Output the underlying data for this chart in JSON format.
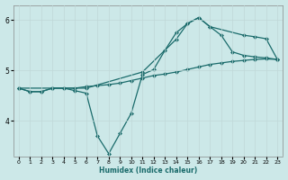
{
  "xlabel": "Humidex (Indice chaleur)",
  "background_color": "#cce8e8",
  "line_color": "#1a6b6b",
  "xlim": [
    -0.5,
    23.5
  ],
  "ylim": [
    3.3,
    6.3
  ],
  "yticks": [
    4,
    5,
    6
  ],
  "xticks": [
    0,
    1,
    2,
    3,
    4,
    5,
    6,
    7,
    8,
    9,
    10,
    11,
    12,
    13,
    14,
    15,
    16,
    17,
    18,
    19,
    20,
    21,
    22,
    23
  ],
  "line1_x": [
    0,
    1,
    2,
    3,
    4,
    5,
    6,
    7,
    8,
    9,
    10,
    11,
    12,
    13,
    14,
    15,
    16,
    17,
    18,
    19,
    20,
    21,
    22,
    23
  ],
  "line1_y": [
    4.65,
    4.58,
    4.58,
    4.65,
    4.65,
    4.65,
    4.68,
    4.7,
    4.72,
    4.75,
    4.8,
    4.85,
    4.9,
    4.93,
    4.97,
    5.02,
    5.07,
    5.12,
    5.15,
    5.18,
    5.2,
    5.22,
    5.23,
    5.22
  ],
  "line2_x": [
    0,
    1,
    2,
    3,
    4,
    5,
    6,
    7,
    8,
    9,
    10,
    11,
    12,
    13,
    14,
    15,
    16,
    17,
    18,
    19,
    20,
    21,
    22,
    23
  ],
  "line2_y": [
    4.65,
    4.58,
    4.58,
    4.65,
    4.65,
    4.6,
    4.55,
    3.7,
    3.35,
    3.75,
    4.15,
    4.92,
    5.02,
    5.4,
    5.75,
    5.93,
    6.05,
    5.87,
    5.7,
    5.37,
    5.3,
    5.27,
    5.25,
    5.22
  ],
  "line3_x": [
    0,
    3,
    6,
    11,
    14,
    15,
    16,
    17,
    20,
    21,
    22,
    23
  ],
  "line3_y": [
    4.65,
    4.65,
    4.65,
    4.97,
    5.62,
    5.93,
    6.05,
    5.87,
    5.7,
    5.67,
    5.63,
    5.22
  ],
  "markersize": 2.5,
  "linewidth": 0.9
}
